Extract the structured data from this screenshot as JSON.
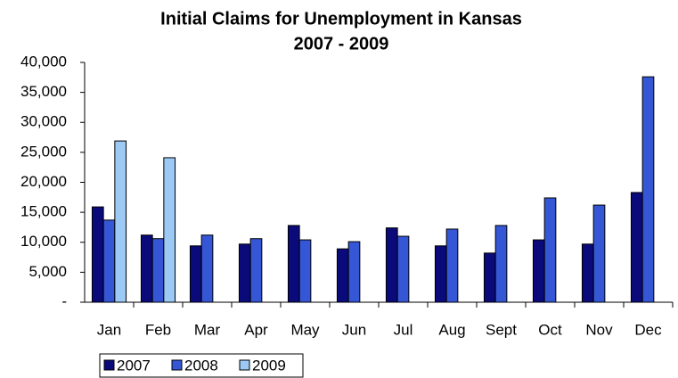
{
  "chart_data": {
    "type": "bar",
    "title": "Initial Claims for Unemployment in Kansas",
    "subtitle": "2007 - 2009",
    "categories": [
      "Jan",
      "Feb",
      "Mar",
      "Apr",
      "May",
      "Jun",
      "Jul",
      "Aug",
      "Sept",
      "Oct",
      "Nov",
      "Dec"
    ],
    "series": [
      {
        "name": "2007",
        "color": "#0a0a7a",
        "values": [
          15900,
          11200,
          9400,
          9700,
          12800,
          8900,
          12400,
          9400,
          8200,
          10400,
          9700,
          18300
        ]
      },
      {
        "name": "2008",
        "color": "#3557d6",
        "values": [
          13700,
          10600,
          11200,
          10600,
          10400,
          10100,
          11000,
          12200,
          12800,
          17400,
          16200,
          37600
        ]
      },
      {
        "name": "2009",
        "color": "#9ccaf5",
        "values": [
          26900,
          24100,
          null,
          null,
          null,
          null,
          null,
          null,
          null,
          null,
          null,
          null
        ]
      }
    ],
    "ylim": [
      0,
      40000
    ],
    "yticks": [
      {
        "value": 0,
        "label": "-"
      },
      {
        "value": 5000,
        "label": "5,000"
      },
      {
        "value": 10000,
        "label": "10,000"
      },
      {
        "value": 15000,
        "label": "15,000"
      },
      {
        "value": 20000,
        "label": "20,000"
      },
      {
        "value": 25000,
        "label": "25,000"
      },
      {
        "value": 30000,
        "label": "30,000"
      },
      {
        "value": 35000,
        "label": "35,000"
      },
      {
        "value": 40000,
        "label": "40,000"
      }
    ],
    "grid": false,
    "legend": "bottom-left"
  }
}
